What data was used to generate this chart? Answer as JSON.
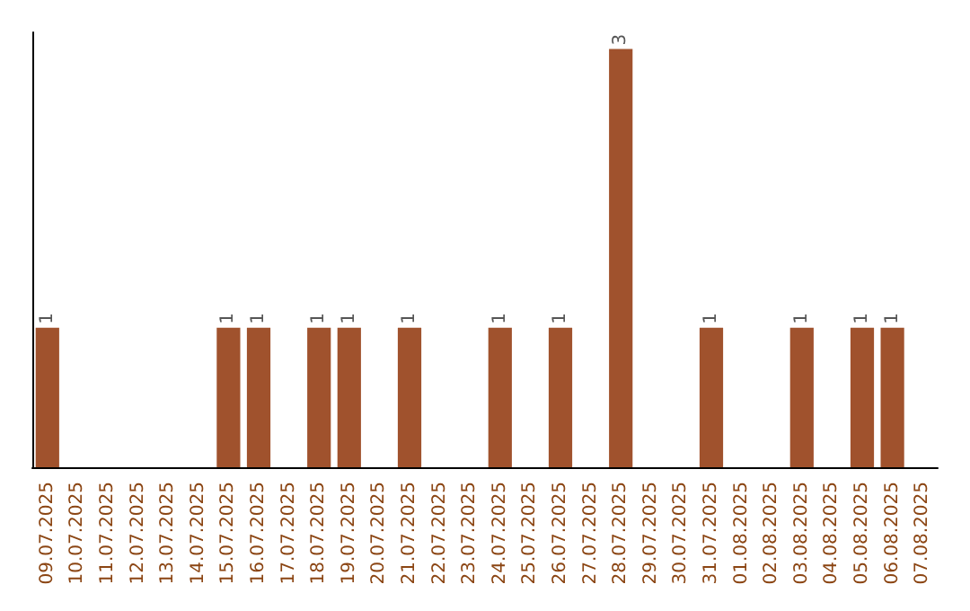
{
  "chart_data": {
    "type": "bar",
    "categories": [
      "09.07.2025",
      "10.07.2025",
      "11.07.2025",
      "12.07.2025",
      "13.07.2025",
      "14.07.2025",
      "15.07.2025",
      "16.07.2025",
      "17.07.2025",
      "18.07.2025",
      "19.07.2025",
      "20.07.2025",
      "21.07.2025",
      "22.07.2025",
      "23.07.2025",
      "24.07.2025",
      "25.07.2025",
      "26.07.2025",
      "27.07.2025",
      "28.07.2025",
      "29.07.2025",
      "30.07.2025",
      "31.07.2025",
      "01.08.2025",
      "02.08.2025",
      "03.08.2025",
      "04.08.2025",
      "05.08.2025",
      "06.08.2025",
      "07.08.2025"
    ],
    "values": [
      1,
      0,
      0,
      0,
      0,
      0,
      1,
      1,
      0,
      1,
      1,
      0,
      1,
      0,
      0,
      1,
      0,
      1,
      0,
      3,
      0,
      0,
      1,
      0,
      0,
      1,
      0,
      1,
      1,
      0
    ],
    "value_labels": [
      "1",
      null,
      null,
      null,
      null,
      null,
      "1",
      "1",
      null,
      "1",
      "1",
      null,
      "1",
      null,
      null,
      "1",
      null,
      "1",
      null,
      "3",
      null,
      null,
      "1",
      null,
      null,
      "1",
      null,
      "1",
      "1",
      null
    ],
    "color": "#a0522d",
    "tick_labels": "x"
  }
}
